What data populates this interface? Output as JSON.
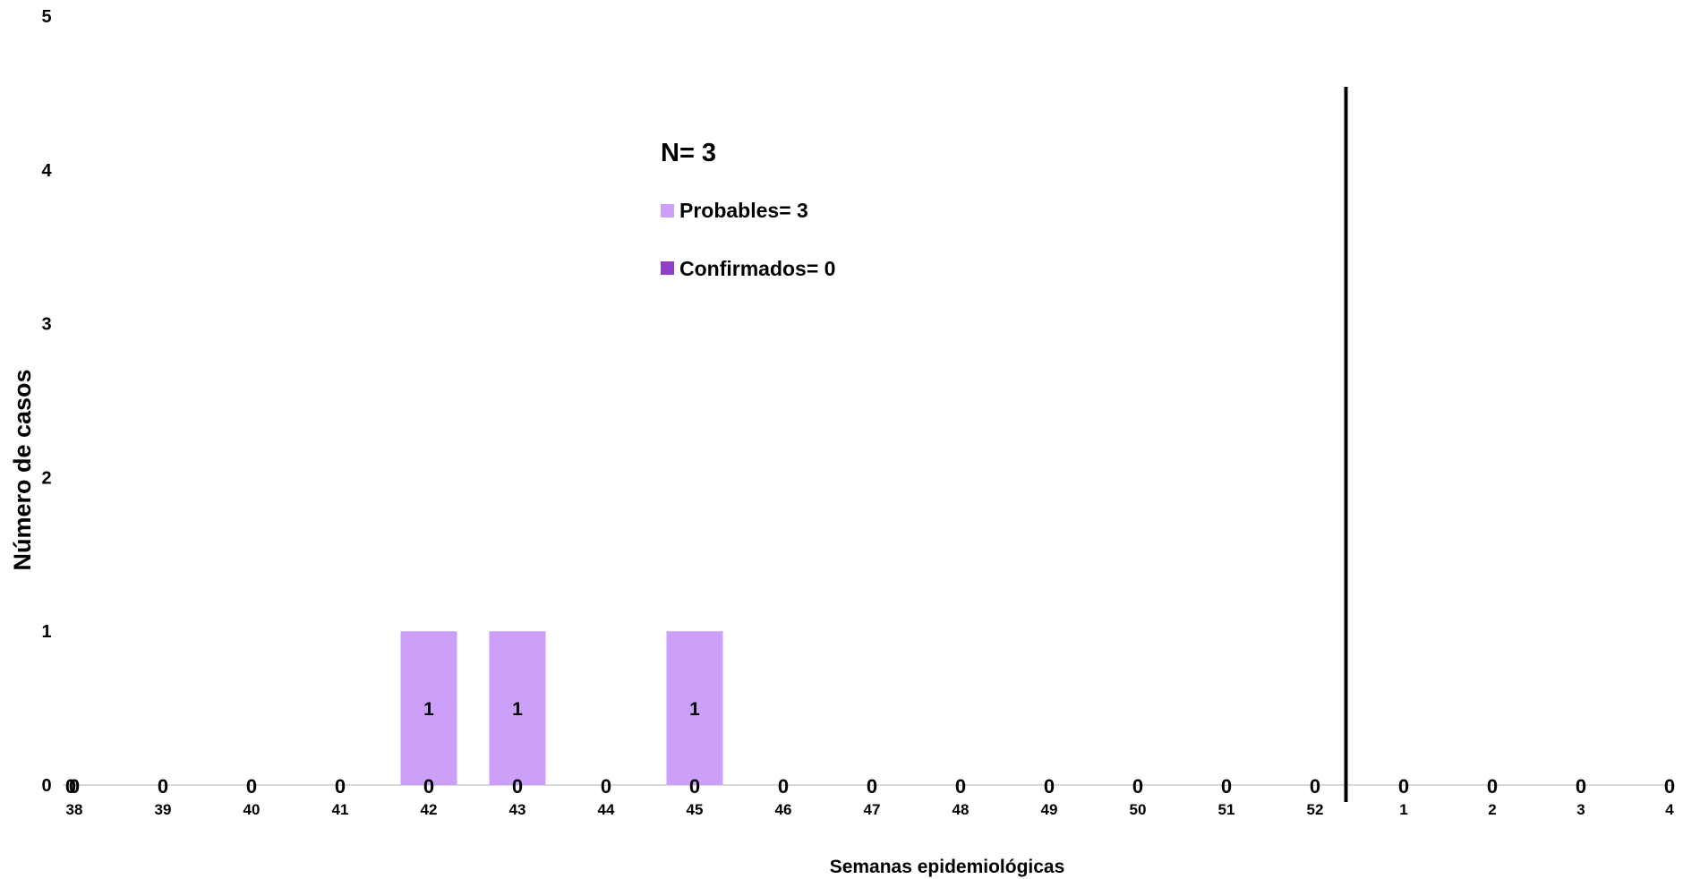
{
  "chart_data": {
    "type": "bar",
    "xlabel": "Semanas epidemiológicas",
    "ylabel": "Número de casos",
    "ylim": [
      0,
      5
    ],
    "yticks": [
      "0",
      "1",
      "2",
      "3",
      "4",
      "5"
    ],
    "categories": [
      "38",
      "39",
      "40",
      "41",
      "42",
      "43",
      "44",
      "45",
      "46",
      "47",
      "48",
      "49",
      "50",
      "51",
      "52",
      "1",
      "2",
      "3",
      "4"
    ],
    "series": [
      {
        "name": "Probables= 3",
        "color": "#cc9ff8",
        "values": [
          0,
          0,
          0,
          0,
          1,
          1,
          0,
          1,
          0,
          0,
          0,
          0,
          0,
          0,
          0,
          0,
          0,
          0,
          0
        ]
      },
      {
        "name": "Confirmados= 0",
        "color": "#8e3fc4",
        "values": [
          0,
          0,
          0,
          0,
          0,
          0,
          0,
          0,
          0,
          0,
          0,
          0,
          0,
          0,
          0,
          0,
          0,
          0,
          0
        ]
      }
    ],
    "annotation": "N= 3",
    "year_divider_after": "52",
    "grid": false,
    "legend_position": "top-center"
  }
}
